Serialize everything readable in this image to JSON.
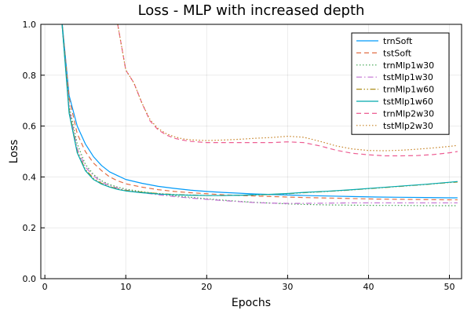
{
  "chart_data": {
    "type": "line",
    "title": "Loss - MLP with increased depth",
    "xlabel": "Epochs",
    "ylabel": "Loss",
    "xlim": [
      -0.5,
      51.5
    ],
    "ylim": [
      0.0,
      1.0
    ],
    "xticks": [
      0,
      10,
      20,
      30,
      40,
      50
    ],
    "yticks": [
      0.0,
      0.2,
      0.4,
      0.6,
      0.8,
      1.0
    ],
    "xtick_labels": [
      "0",
      "10",
      "20",
      "30",
      "40",
      "50"
    ],
    "ytick_labels": [
      "0.0",
      "0.2",
      "0.4",
      "0.6",
      "0.8",
      "1.0"
    ],
    "grid": true,
    "legend_position": "top-right",
    "series": [
      {
        "name": "trnSoft",
        "color": "#009af9",
        "dash": "solid",
        "x": [
          2,
          3,
          4,
          5,
          6,
          7,
          8,
          9,
          10,
          12,
          14,
          16,
          18,
          20,
          22,
          24,
          26,
          28,
          30,
          32,
          35,
          38,
          41,
          44,
          47,
          50,
          51
        ],
        "y": [
          1.05,
          0.72,
          0.6,
          0.53,
          0.48,
          0.445,
          0.42,
          0.405,
          0.39,
          0.375,
          0.363,
          0.355,
          0.348,
          0.343,
          0.339,
          0.336,
          0.333,
          0.331,
          0.329,
          0.327,
          0.325,
          0.323,
          0.321,
          0.32,
          0.319,
          0.318,
          0.318
        ]
      },
      {
        "name": "tstSoft",
        "color": "#e26f46",
        "dash": "dashed",
        "x": [
          2,
          3,
          4,
          5,
          6,
          7,
          8,
          9,
          10,
          12,
          14,
          16,
          18,
          20,
          22,
          24,
          26,
          28,
          30,
          32,
          35,
          38,
          41,
          44,
          47,
          50,
          51
        ],
        "y": [
          1.05,
          0.71,
          0.57,
          0.5,
          0.455,
          0.425,
          0.4,
          0.385,
          0.373,
          0.36,
          0.35,
          0.343,
          0.338,
          0.334,
          0.33,
          0.327,
          0.325,
          0.323,
          0.321,
          0.319,
          0.317,
          0.315,
          0.313,
          0.312,
          0.311,
          0.31,
          0.31
        ]
      },
      {
        "name": "trnMlp1w30",
        "color": "#3da44d",
        "dash": "dotted",
        "x": [
          2,
          3,
          4,
          5,
          6,
          7,
          8,
          9,
          10,
          12,
          14,
          16,
          18,
          20,
          22,
          24,
          26,
          28,
          30,
          32,
          35,
          38,
          41,
          44,
          47,
          50,
          51
        ],
        "y": [
          1.05,
          0.68,
          0.53,
          0.45,
          0.41,
          0.385,
          0.37,
          0.36,
          0.352,
          0.342,
          0.334,
          0.326,
          0.32,
          0.314,
          0.309,
          0.304,
          0.3,
          0.297,
          0.294,
          0.292,
          0.29,
          0.289,
          0.288,
          0.288,
          0.287,
          0.287,
          0.287
        ]
      },
      {
        "name": "tstMlp1w30",
        "color": "#c271d2",
        "dash": "dashdot",
        "x": [
          2,
          3,
          4,
          5,
          6,
          7,
          8,
          9,
          10,
          12,
          14,
          16,
          18,
          20,
          22,
          24,
          26,
          28,
          30,
          32,
          35,
          38,
          41,
          44,
          47,
          50,
          51
        ],
        "y": [
          1.05,
          0.67,
          0.51,
          0.44,
          0.405,
          0.38,
          0.366,
          0.356,
          0.348,
          0.338,
          0.33,
          0.323,
          0.317,
          0.312,
          0.307,
          0.303,
          0.299,
          0.297,
          0.296,
          0.296,
          0.297,
          0.298,
          0.298,
          0.298,
          0.298,
          0.298,
          0.298
        ]
      },
      {
        "name": "trnMlp1w60",
        "color": "#ac8d18",
        "dash": "dashdotdot",
        "x": [
          2,
          3,
          4,
          5,
          6,
          7,
          8,
          9,
          10,
          12,
          14,
          16,
          18,
          20,
          22,
          24,
          26,
          28,
          30,
          32,
          35,
          38,
          41,
          44,
          47,
          50,
          51
        ],
        "y": [
          1.05,
          0.66,
          0.5,
          0.43,
          0.395,
          0.375,
          0.362,
          0.353,
          0.347,
          0.34,
          0.335,
          0.331,
          0.329,
          0.327,
          0.327,
          0.328,
          0.329,
          0.331,
          0.334,
          0.338,
          0.343,
          0.349,
          0.356,
          0.363,
          0.37,
          0.378,
          0.38
        ]
      },
      {
        "name": "tstMlp1w60",
        "color": "#00a9ad",
        "dash": "solid",
        "x": [
          2,
          3,
          4,
          5,
          6,
          7,
          8,
          9,
          10,
          12,
          14,
          16,
          18,
          20,
          22,
          24,
          26,
          28,
          30,
          32,
          35,
          38,
          41,
          44,
          47,
          50,
          51
        ],
        "y": [
          1.05,
          0.65,
          0.495,
          0.425,
          0.39,
          0.372,
          0.36,
          0.351,
          0.345,
          0.338,
          0.333,
          0.33,
          0.328,
          0.327,
          0.327,
          0.328,
          0.33,
          0.332,
          0.335,
          0.339,
          0.344,
          0.35,
          0.357,
          0.364,
          0.371,
          0.379,
          0.382
        ]
      },
      {
        "name": "trnMlp2w30",
        "color": "#ed5e93",
        "dash": "dashed",
        "x": [
          9,
          10,
          11,
          12,
          13,
          14,
          15,
          16,
          17,
          18,
          20,
          22,
          24,
          26,
          28,
          30,
          32,
          34,
          36,
          38,
          40,
          42,
          44,
          46,
          48,
          50,
          51
        ],
        "y": [
          1.0,
          0.82,
          0.77,
          0.69,
          0.62,
          0.585,
          0.565,
          0.552,
          0.545,
          0.54,
          0.535,
          0.535,
          0.535,
          0.535,
          0.535,
          0.538,
          0.535,
          0.522,
          0.505,
          0.493,
          0.487,
          0.483,
          0.483,
          0.484,
          0.488,
          0.495,
          0.5
        ]
      },
      {
        "name": "tstMlp2w30",
        "color": "#c68225",
        "dash": "dotted",
        "x": [
          9,
          10,
          11,
          12,
          13,
          14,
          15,
          16,
          17,
          18,
          20,
          22,
          24,
          26,
          28,
          30,
          32,
          34,
          36,
          38,
          40,
          42,
          44,
          46,
          48,
          50,
          51
        ],
        "y": [
          1.0,
          0.82,
          0.77,
          0.69,
          0.625,
          0.59,
          0.57,
          0.558,
          0.55,
          0.546,
          0.543,
          0.545,
          0.548,
          0.552,
          0.555,
          0.56,
          0.556,
          0.54,
          0.522,
          0.51,
          0.504,
          0.503,
          0.505,
          0.509,
          0.514,
          0.52,
          0.524
        ]
      }
    ]
  }
}
